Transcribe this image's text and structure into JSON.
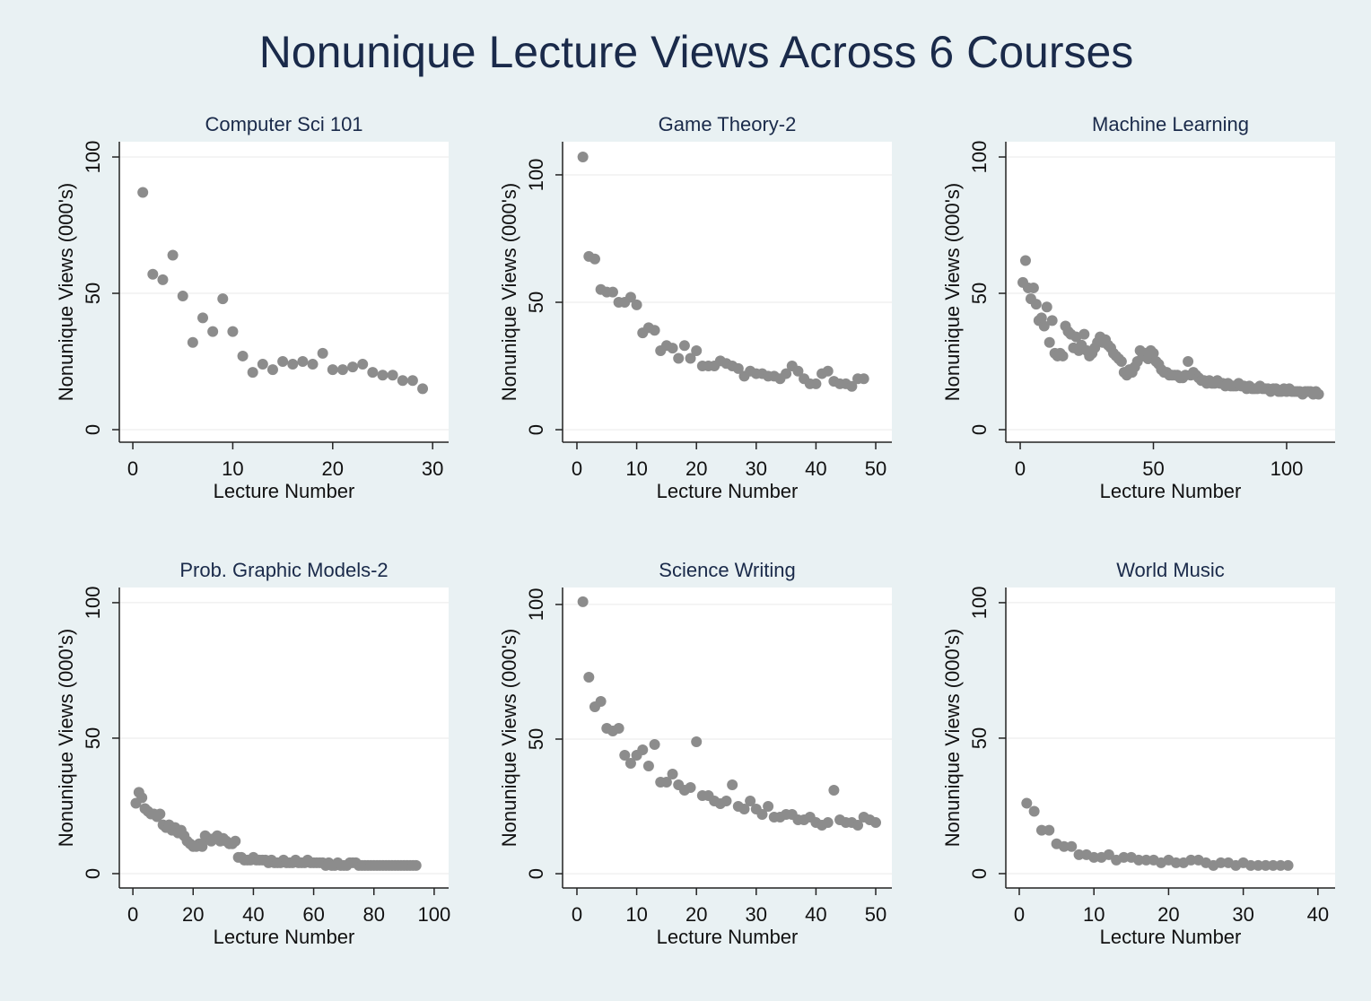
{
  "title": "Nonunique Lecture Views Across 6 Courses",
  "chart_data": [
    {
      "type": "scatter",
      "title": "Computer Sci 101",
      "x_label": "Lecture Number",
      "y_label": "Nonunique Views (000's)",
      "xlim": [
        -1.35,
        31.6
      ],
      "ylim": [
        -4.6,
        105.6
      ],
      "xticks": [
        0,
        10,
        20,
        30
      ],
      "yticks": [
        0,
        50,
        100
      ],
      "grid": true,
      "series": [
        {
          "color": "#8c8c8c",
          "x": [
            1,
            2,
            3,
            4,
            5,
            6,
            7,
            8,
            9,
            10,
            11,
            12,
            13,
            14,
            15,
            16,
            17,
            18,
            19,
            20,
            21,
            22,
            23,
            24,
            25,
            26,
            27,
            28,
            29
          ],
          "values": [
            87,
            57,
            55,
            64,
            49,
            32,
            41,
            36,
            48,
            36,
            27,
            21,
            24,
            22,
            25,
            24,
            25,
            24,
            28,
            22,
            22,
            23,
            24,
            21,
            20,
            20,
            18,
            18,
            15
          ]
        }
      ]
    },
    {
      "type": "scatter",
      "title": "Game Theory-2",
      "x_label": "Lecture Number",
      "y_label": "Nonunique Views (000's)",
      "xlim": [
        -2.4,
        52.7
      ],
      "ylim": [
        -4.9,
        113
      ],
      "xticks": [
        0,
        10,
        20,
        30,
        40,
        50
      ],
      "yticks": [
        0,
        50,
        100
      ],
      "grid": true,
      "series": [
        {
          "color": "#8c8c8c",
          "x": [
            1,
            2,
            3,
            4,
            5,
            6,
            7,
            8,
            9,
            10,
            11,
            12,
            13,
            14,
            15,
            16,
            17,
            18,
            19,
            20,
            21,
            22,
            23,
            24,
            25,
            26,
            27,
            28,
            29,
            30,
            31,
            32,
            33,
            34,
            35,
            36,
            37,
            38,
            39,
            40,
            41,
            42,
            43,
            44,
            45,
            46,
            47,
            48
          ],
          "values": [
            107,
            68,
            67,
            55,
            54,
            54,
            50,
            50,
            52,
            49,
            38,
            40,
            39,
            31,
            33,
            32,
            28,
            33,
            28,
            31,
            25,
            25,
            25,
            27,
            26,
            25,
            24,
            21,
            23,
            22,
            22,
            21,
            21,
            20,
            22,
            25,
            23,
            20,
            18,
            18,
            22,
            23,
            19,
            18,
            18,
            17,
            20,
            20
          ]
        }
      ]
    },
    {
      "type": "scatter",
      "title": "Machine Learning",
      "x_label": "Lecture Number",
      "y_label": "Nonunique Views (000's)",
      "xlim": [
        -5.4,
        118.2
      ],
      "ylim": [
        -4.6,
        105.6
      ],
      "xticks": [
        0,
        50,
        100
      ],
      "yticks": [
        0,
        50,
        100
      ],
      "grid": true,
      "series": [
        {
          "color": "#8c8c8c",
          "x": [
            1,
            2,
            3,
            4,
            5,
            6,
            7,
            8,
            9,
            10,
            11,
            12,
            13,
            14,
            15,
            16,
            17,
            18,
            19,
            20,
            21,
            22,
            23,
            24,
            25,
            26,
            27,
            28,
            29,
            30,
            31,
            32,
            33,
            34,
            35,
            36,
            37,
            38,
            39,
            40,
            41,
            42,
            43,
            44,
            45,
            46,
            47,
            48,
            49,
            50,
            51,
            52,
            53,
            54,
            55,
            56,
            57,
            58,
            59,
            60,
            61,
            62,
            63,
            64,
            65,
            66,
            67,
            68,
            69,
            70,
            71,
            72,
            73,
            74,
            75,
            76,
            77,
            78,
            79,
            80,
            81,
            82,
            83,
            84,
            85,
            86,
            87,
            88,
            89,
            90,
            91,
            92,
            93,
            94,
            95,
            96,
            97,
            98,
            99,
            100,
            101,
            102,
            103,
            104,
            105,
            106,
            107,
            108,
            109,
            110,
            111,
            112
          ],
          "values": [
            54,
            62,
            52,
            48,
            52,
            46,
            40,
            41,
            38,
            45,
            32,
            40,
            28,
            27,
            28,
            27,
            38,
            36,
            35,
            30,
            34,
            29,
            31,
            35,
            29,
            27,
            28,
            30,
            32,
            34,
            32,
            33,
            31,
            30,
            28,
            27,
            26,
            25,
            21,
            20,
            22,
            21,
            23,
            25,
            29,
            27,
            28,
            26,
            29,
            28,
            25,
            24,
            22,
            21,
            21,
            20,
            20,
            20,
            20,
            19,
            19,
            20,
            25,
            20,
            21,
            20,
            19,
            18,
            18,
            17,
            18,
            17,
            17,
            18,
            17,
            17,
            16,
            17,
            16,
            16,
            16,
            17,
            16,
            16,
            15,
            16,
            15,
            15,
            15,
            16,
            15,
            15,
            15,
            14,
            15,
            15,
            14,
            14,
            15,
            14,
            15,
            14,
            14,
            14,
            14,
            13,
            14,
            14,
            14,
            13,
            14,
            13
          ]
        }
      ]
    },
    {
      "type": "scatter",
      "title": "Prob. Graphic Models-2",
      "x_label": "Lecture Number",
      "y_label": "Nonunique Views (000's)",
      "xlim": [
        -4.5,
        104.8
      ],
      "ylim": [
        -5.3,
        105.6
      ],
      "xticks": [
        0,
        20,
        40,
        60,
        80,
        100
      ],
      "yticks": [
        0,
        50,
        100
      ],
      "grid": true,
      "series": [
        {
          "color": "#8c8c8c",
          "x": [
            1,
            2,
            3,
            4,
            5,
            6,
            7,
            8,
            9,
            10,
            11,
            12,
            13,
            14,
            15,
            16,
            17,
            18,
            19,
            20,
            21,
            22,
            23,
            24,
            25,
            26,
            27,
            28,
            29,
            30,
            31,
            32,
            33,
            34,
            35,
            36,
            37,
            38,
            39,
            40,
            41,
            42,
            43,
            44,
            45,
            46,
            47,
            48,
            49,
            50,
            51,
            52,
            53,
            54,
            55,
            56,
            57,
            58,
            59,
            60,
            61,
            62,
            63,
            64,
            65,
            66,
            67,
            68,
            69,
            70,
            71,
            72,
            73,
            74,
            75,
            76,
            77,
            78,
            79,
            80,
            81,
            82,
            83,
            84,
            85,
            86,
            87,
            88,
            89,
            90,
            91,
            92,
            93,
            94
          ],
          "values": [
            26,
            30,
            28,
            24,
            23,
            22,
            22,
            21,
            22,
            18,
            17,
            18,
            16,
            17,
            15,
            16,
            14,
            12,
            11,
            10,
            10,
            11,
            10,
            14,
            13,
            12,
            13,
            14,
            12,
            13,
            12,
            11,
            11,
            12,
            6,
            6,
            5,
            5,
            5,
            6,
            5,
            5,
            5,
            5,
            4,
            5,
            4,
            4,
            4,
            5,
            4,
            4,
            4,
            5,
            4,
            4,
            4,
            5,
            4,
            4,
            4,
            4,
            4,
            3,
            4,
            3,
            3,
            4,
            3,
            3,
            3,
            4,
            4,
            4,
            3,
            3,
            3,
            3,
            3,
            3,
            3,
            3,
            3,
            3,
            3,
            3,
            3,
            3,
            3,
            3,
            3,
            3,
            3,
            3
          ]
        }
      ]
    },
    {
      "type": "scatter",
      "title": "Science Writing",
      "x_label": "Lecture Number",
      "y_label": "Nonunique Views (000's)",
      "xlim": [
        -2.4,
        52.7
      ],
      "ylim": [
        -5.3,
        106.3
      ],
      "xticks": [
        0,
        10,
        20,
        30,
        40,
        50
      ],
      "yticks": [
        0,
        50,
        100
      ],
      "grid": true,
      "series": [
        {
          "color": "#8c8c8c",
          "x": [
            1,
            2,
            3,
            4,
            5,
            6,
            7,
            8,
            9,
            10,
            11,
            12,
            13,
            14,
            15,
            16,
            17,
            18,
            19,
            20,
            21,
            22,
            23,
            24,
            25,
            26,
            27,
            28,
            29,
            30,
            31,
            32,
            33,
            34,
            35,
            36,
            37,
            38,
            39,
            40,
            41,
            42,
            43,
            44,
            45,
            46,
            47,
            48,
            49,
            50
          ],
          "values": [
            101,
            73,
            62,
            64,
            54,
            53,
            54,
            44,
            41,
            44,
            46,
            40,
            48,
            34,
            34,
            37,
            33,
            31,
            32,
            49,
            29,
            29,
            27,
            26,
            27,
            33,
            25,
            24,
            27,
            24,
            22,
            25,
            21,
            21,
            22,
            22,
            20,
            20,
            21,
            19,
            18,
            19,
            31,
            20,
            19,
            19,
            18,
            21,
            20,
            19
          ]
        }
      ]
    },
    {
      "type": "scatter",
      "title": "World Music",
      "x_label": "Lecture Number",
      "y_label": "Nonunique Views (000's)",
      "xlim": [
        -1.8,
        42.3
      ],
      "ylim": [
        -5.3,
        105.6
      ],
      "xticks": [
        0,
        10,
        20,
        30,
        40
      ],
      "yticks": [
        0,
        50,
        100
      ],
      "grid": true,
      "series": [
        {
          "color": "#8c8c8c",
          "x": [
            1,
            2,
            3,
            4,
            5,
            6,
            7,
            8,
            9,
            10,
            11,
            12,
            13,
            14,
            15,
            16,
            17,
            18,
            19,
            20,
            21,
            22,
            23,
            24,
            25,
            26,
            27,
            28,
            29,
            30,
            31,
            32,
            33,
            34,
            35,
            36
          ],
          "values": [
            26,
            23,
            16,
            16,
            11,
            10,
            10,
            7,
            7,
            6,
            6,
            7,
            5,
            6,
            6,
            5,
            5,
            5,
            4,
            5,
            4,
            4,
            5,
            5,
            4,
            3,
            4,
            4,
            3,
            4,
            3,
            3,
            3,
            3,
            3,
            3
          ]
        }
      ]
    }
  ]
}
